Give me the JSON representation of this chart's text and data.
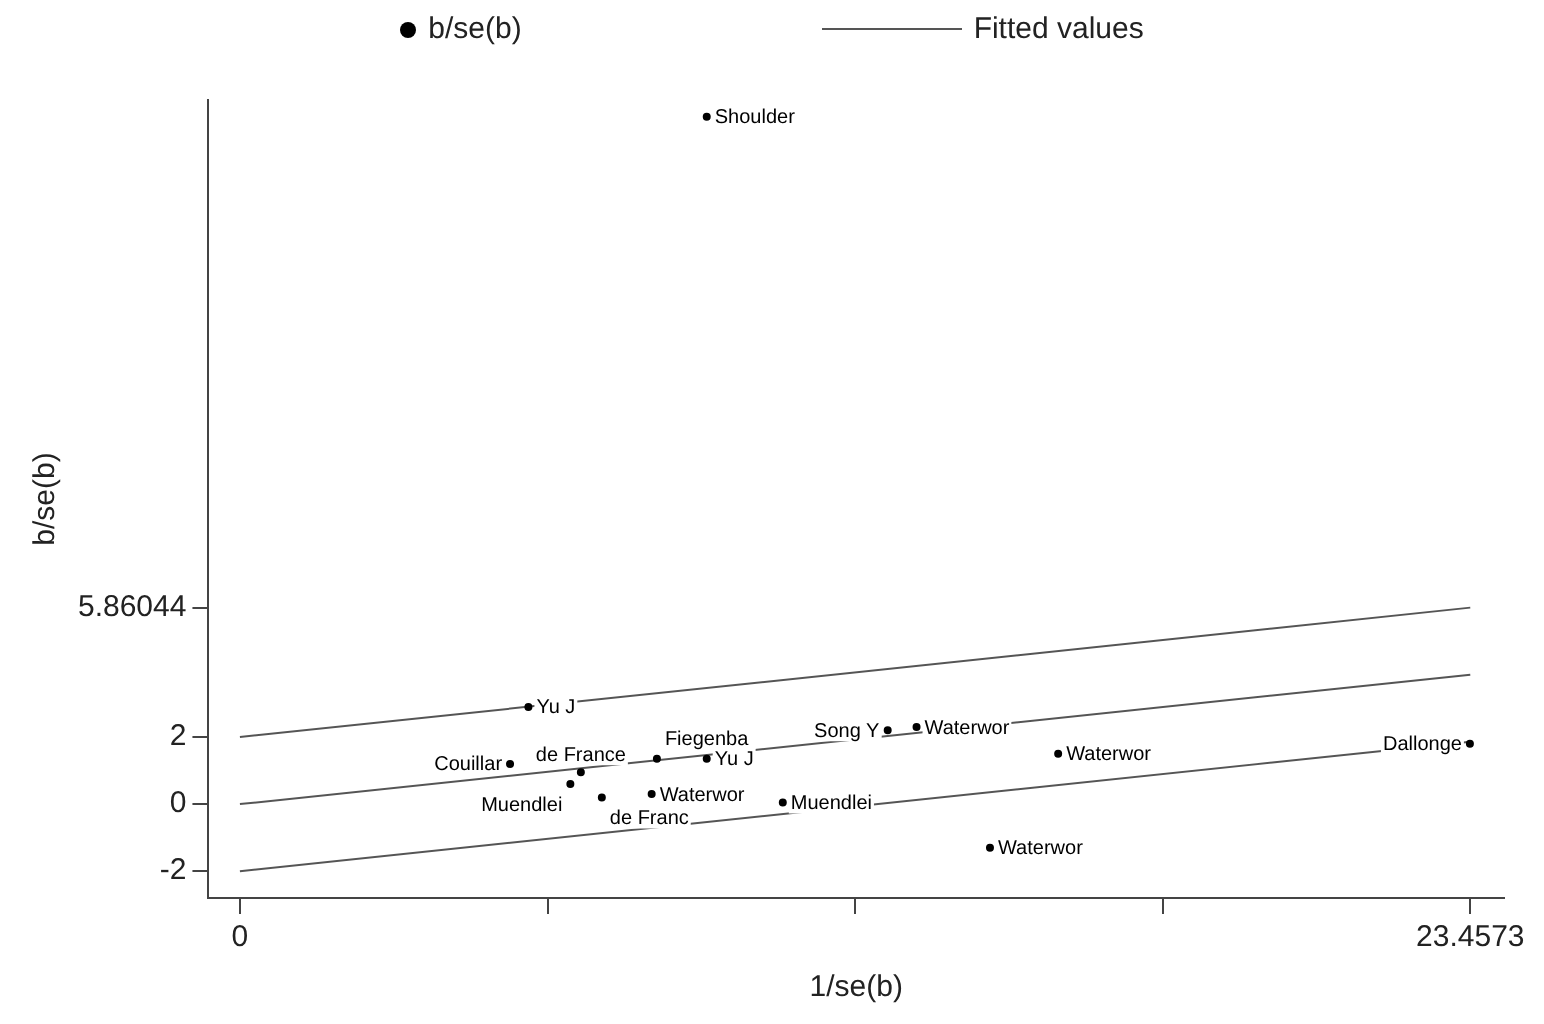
{
  "chart_data": {
    "type": "scatter",
    "xlabel": "1/se(b)",
    "ylabel": "b/se(b)",
    "legend": "top",
    "grid": false,
    "xlim": [
      -0.6,
      24.1
    ],
    "ylim": [
      -2.8,
      21
    ],
    "xticks": [
      0,
      {
        "value": 5.8643,
        "label": null
      },
      {
        "value": 11.7287,
        "label": null
      },
      {
        "value": 17.593,
        "label": null
      },
      23.4573
    ],
    "yticks": [
      -2,
      0,
      2,
      5.86044
    ],
    "series": [
      {
        "name": "b/se(b)",
        "type": "scatter",
        "color": "#000000",
        "marker": "circle",
        "x": [
          8.9,
          5.5,
          5.15,
          6.5,
          6.3,
          6.9,
          7.85,
          10.35,
          7.95,
          8.9,
          12.35,
          12.9,
          15.6,
          14.3,
          23.45
        ],
        "values": [
          20.5,
          2.9,
          1.2,
          0.95,
          0.6,
          0.2,
          0.3,
          0.05,
          1.35,
          1.35,
          2.2,
          2.3,
          1.5,
          -1.3,
          1.8
        ],
        "value_labels": [
          "Shoulder",
          "Yu J",
          "Couillar",
          "de France",
          "Muendlei",
          "de Franc",
          "Waterwor",
          "Muendlei",
          "Fiegenba",
          "Yu J",
          "Song Y",
          "Waterwor",
          "Waterwor",
          "Waterwor",
          "Dallonge"
        ]
      },
      {
        "name": "Fitted values",
        "type": "line",
        "color": "#555555",
        "x": [
          0,
          23.4573
        ],
        "values": [
          0,
          3.86
        ]
      },
      {
        "type": "line",
        "color": "#555555",
        "x": [
          0,
          23.4573
        ],
        "values": [
          2,
          5.86044
        ]
      },
      {
        "type": "line",
        "color": "#555555",
        "x": [
          0,
          23.4573
        ],
        "values": [
          -2,
          1.86
        ]
      }
    ]
  }
}
